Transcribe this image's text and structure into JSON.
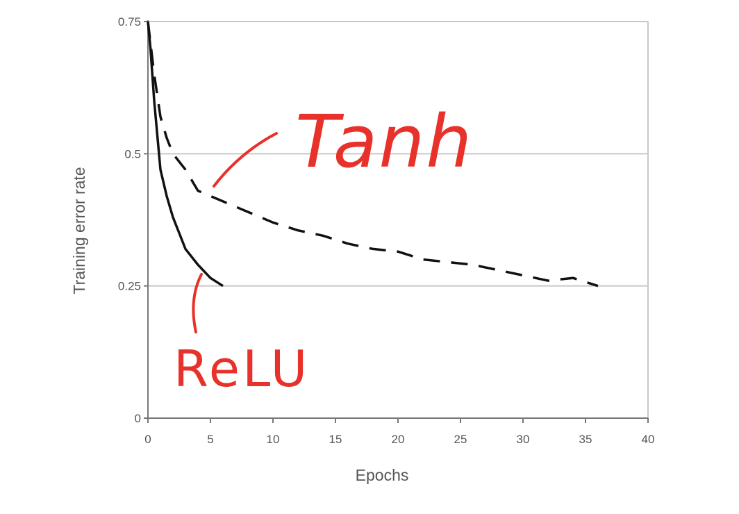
{
  "chart_data": {
    "type": "line",
    "title": "",
    "xlabel": "Epochs",
    "ylabel": "Training error rate",
    "xlim": [
      0,
      40
    ],
    "ylim": [
      0,
      0.75
    ],
    "xticks": [
      0,
      5,
      10,
      15,
      20,
      25,
      30,
      35,
      40
    ],
    "yticks": [
      0,
      0.25,
      0.5,
      0.75
    ],
    "ytick_labels": [
      "0",
      "0.25",
      "0.5",
      "0.75"
    ],
    "grid": "horizontal",
    "colors": {
      "axis": "#777777",
      "grid": "#c8c8c8",
      "series": "#111111",
      "annotation": "#e8312a"
    },
    "series": [
      {
        "name": "ReLU",
        "style": "solid",
        "x": [
          0,
          0.2,
          0.5,
          1,
          1.5,
          2,
          3,
          4,
          5,
          6
        ],
        "y": [
          0.75,
          0.7,
          0.6,
          0.47,
          0.42,
          0.38,
          0.32,
          0.29,
          0.265,
          0.25
        ]
      },
      {
        "name": "Tanh",
        "style": "dashed",
        "x": [
          0,
          0.5,
          1,
          1.5,
          2,
          3,
          4,
          6,
          8,
          10,
          12,
          14,
          16,
          18,
          20,
          22,
          24,
          26,
          28,
          30,
          32,
          34,
          36
        ],
        "y": [
          0.75,
          0.65,
          0.57,
          0.53,
          0.5,
          0.47,
          0.43,
          0.41,
          0.39,
          0.37,
          0.355,
          0.345,
          0.33,
          0.32,
          0.315,
          0.3,
          0.295,
          0.29,
          0.28,
          0.27,
          0.26,
          0.265,
          0.25
        ]
      }
    ],
    "annotations": [
      {
        "text": "Tanh",
        "points_to": "Tanh"
      },
      {
        "text": "ReLU",
        "points_to": "ReLU"
      }
    ]
  }
}
